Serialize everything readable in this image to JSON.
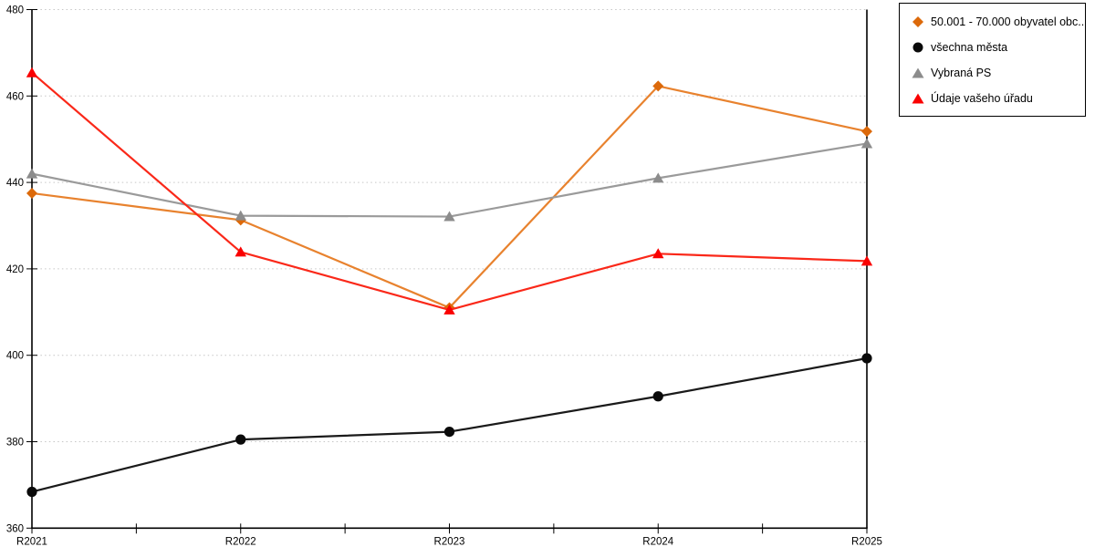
{
  "chart_data": {
    "type": "line",
    "title": "",
    "xlabel": "",
    "ylabel": "",
    "categories": [
      "R2021",
      "R2022",
      "R2023",
      "R2024",
      "R2025"
    ],
    "series": [
      {
        "name": "50.001 - 70.000 obyvatel obc...",
        "marker": "diamond",
        "marker_color": "#dc690a",
        "line_color": "#e8822e",
        "values": [
          437.5,
          431.3,
          411.0,
          462.3,
          451.8
        ]
      },
      {
        "name": "všechna města",
        "marker": "circle",
        "marker_color": "#0a0a0a",
        "line_color": "#1a1a1a",
        "values": [
          368.4,
          380.5,
          382.3,
          390.5,
          399.3
        ]
      },
      {
        "name": "Vybraná PS",
        "marker": "triangle",
        "marker_color": "#8c8c8c",
        "line_color": "#9a9a9a",
        "values": [
          442.0,
          432.3,
          432.1,
          441.0,
          449.0
        ]
      },
      {
        "name": "Údaje vašeho úřadu",
        "marker": "triangle",
        "marker_color": "#fa0000",
        "line_color": "#fa2819",
        "values": [
          465.4,
          423.9,
          410.5,
          423.5,
          421.8
        ]
      }
    ],
    "ylim": [
      360,
      480
    ],
    "ytick_step": 20,
    "x_minor_ticks": true,
    "grid": "horizontal-dotted",
    "gridline_color": "#c6c6c6",
    "axis_color": "#000000",
    "legend_position": "outside-top-right"
  }
}
